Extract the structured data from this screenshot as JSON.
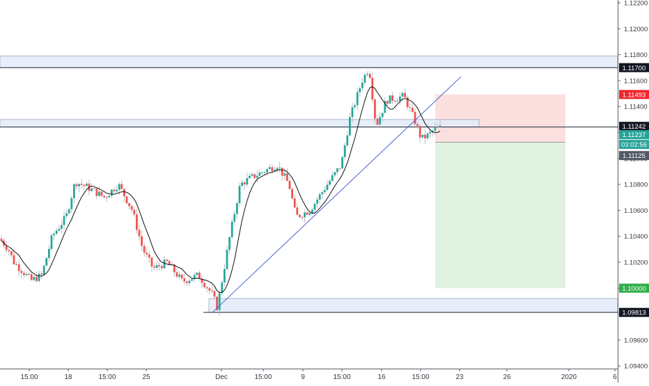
{
  "chart_data": {
    "type": "candlestick",
    "y_axis": {
      "ticks": [
        "1.12200",
        "1.12000",
        "1.11800",
        "1.11600",
        "1.11400",
        "1.11200",
        "1.11000",
        "1.10800",
        "1.10600",
        "1.10400",
        "1.10200",
        "1.10000",
        "1.09800",
        "1.09600",
        "1.09400"
      ],
      "ylim": [
        1.093,
        1.1223
      ]
    },
    "x_axis": {
      "ticks": [
        "15:00",
        "18",
        "15:00",
        "25",
        "Dec",
        "15:00",
        "9",
        "15:00",
        "16",
        "15:00",
        "23",
        "26",
        "2020",
        "6"
      ]
    },
    "price_labels": [
      {
        "text": "1.11700",
        "value": 1.117,
        "style": "dark"
      },
      {
        "text": "1.11493",
        "value": 1.11493,
        "style": "red"
      },
      {
        "text": "1.11242",
        "value": 1.11242,
        "style": "dark"
      },
      {
        "text": "1.11237",
        "value": 1.11237,
        "style": "teal"
      },
      {
        "text": "03:02:56",
        "value": 1.11168,
        "style": "teal"
      },
      {
        "text": "1.11125",
        "value": 1.11125,
        "style": "gray"
      },
      {
        "text": "1.10000",
        "value": 1.1,
        "style": "green"
      },
      {
        "text": "1.09813",
        "value": 1.09813,
        "style": "dark"
      }
    ],
    "zones": [
      {
        "name": "resistance-zone-upper",
        "y_low": 1.117,
        "y_high": 1.1179
      },
      {
        "name": "resistance-zone-mid",
        "y_low": 1.11242,
        "y_high": 1.113
      },
      {
        "name": "support-zone-lower",
        "y_low": 1.09813,
        "y_high": 1.0992
      }
    ],
    "position": {
      "entry": 1.11125,
      "stop": 1.11493,
      "target": 1.1
    },
    "horizontal_lines": [
      1.117,
      1.11242,
      1.09813
    ],
    "trendline": {
      "from": 1.09813,
      "to": 1.1163
    },
    "colors": {
      "up": "#26a69a",
      "down": "#ef5350",
      "zone_fill": "#e3ecf9",
      "zone_stroke": "#8a9ab3",
      "trendline": "#4a5fd0",
      "stop_zone": "#fcdcdc",
      "target_zone": "#dff1df",
      "ma_line": "#111111"
    }
  }
}
